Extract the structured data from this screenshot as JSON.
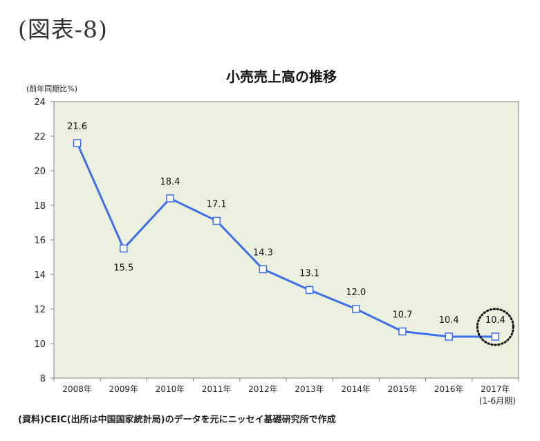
{
  "figure_label": "(図表-8)",
  "source_note": "(資料)CEIC(出所は中国国家統計局)のデータを元にニッセイ基礎研究所で作成",
  "chart_data": {
    "type": "line",
    "title": "小売売上高の推移",
    "unit_label": "(前年同期比%)",
    "categories": [
      "2008年",
      "2009年",
      "2010年",
      "2011年",
      "2012年",
      "2013年",
      "2014年",
      "2015年",
      "2016年",
      "2017年"
    ],
    "category_sublabels": [
      "",
      "",
      "",
      "",
      "",
      "",
      "",
      "",
      "",
      "(1-6月期)"
    ],
    "values": [
      21.6,
      15.5,
      18.4,
      17.1,
      14.3,
      13.1,
      12.0,
      10.7,
      10.4,
      10.4
    ],
    "value_labels": [
      "21.6",
      "15.5",
      "18.4",
      "17.1",
      "14.3",
      "13.1",
      "12.0",
      "10.7",
      "10.4",
      "10.4"
    ],
    "ylim": [
      8,
      24
    ],
    "yticks": [
      8,
      10,
      12,
      14,
      16,
      18,
      20,
      22,
      24
    ],
    "grid": false,
    "highlight_index": 9,
    "colors": {
      "plot_bg": "#ebf1de",
      "line": "#3d6ef0",
      "marker_fill": "#ffffff"
    }
  }
}
